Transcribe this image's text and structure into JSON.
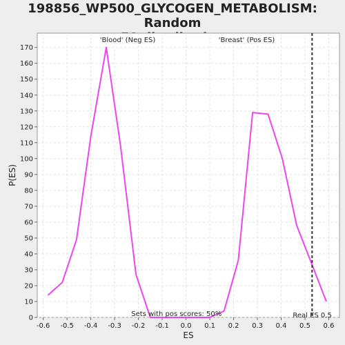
{
  "chart_data": {
    "type": "line",
    "title_lines": [
      "198856_WP500_GLYCOGEN_METABOLISM: Random",
      "ES distribution"
    ],
    "xlabel": "ES",
    "ylabel": "P(ES)",
    "xlim": [
      -0.625,
      0.645
    ],
    "ylim": [
      0,
      179
    ],
    "x_ticks": [
      -0.6,
      -0.5,
      -0.4,
      -0.3,
      -0.2,
      -0.1,
      0.0,
      0.1,
      0.2,
      0.3,
      0.4,
      0.5,
      0.6
    ],
    "x_tick_labels": [
      "-0.6",
      "-0.5",
      "-0.4",
      "-0.3",
      "-0.2",
      "-0.1",
      "0.0",
      "0.1",
      "0.2",
      "0.3",
      "0.4",
      "0.5",
      "0.6"
    ],
    "y_ticks": [
      0,
      10,
      20,
      30,
      40,
      50,
      60,
      70,
      80,
      90,
      100,
      110,
      120,
      130,
      140,
      150,
      160,
      170
    ],
    "y_tick_labels": [
      "0",
      "10",
      "20",
      "30",
      "40",
      "50",
      "60",
      "70",
      "80",
      "90",
      "100",
      "110",
      "120",
      "130",
      "140",
      "150",
      "160",
      "170"
    ],
    "grid": true,
    "series": [
      {
        "color": "#ee44ee",
        "x": [
          -0.58,
          -0.52,
          -0.46,
          -0.4,
          -0.335,
          -0.275,
          -0.21,
          -0.15,
          -0.09,
          -0.03,
          0.04,
          0.1,
          0.16,
          0.22,
          0.28,
          0.345,
          0.405,
          0.465,
          0.525,
          0.59
        ],
        "y": [
          14,
          22,
          49,
          114,
          170,
          108,
          27,
          0,
          0,
          0,
          0,
          0,
          4,
          36,
          129,
          128,
          100,
          58,
          35,
          10
        ]
      }
    ],
    "real_es": {
      "x": 0.53,
      "label": "Real ES 0.5"
    },
    "annotations": {
      "neg": {
        "text": "'Blood' (Neg ES)",
        "color": "#4444cc"
      },
      "pos": {
        "text": "'Breast' (Pos ES)",
        "color": "#dd4444"
      },
      "bottom": {
        "text": "Sets with pos scores: 50%"
      }
    }
  }
}
